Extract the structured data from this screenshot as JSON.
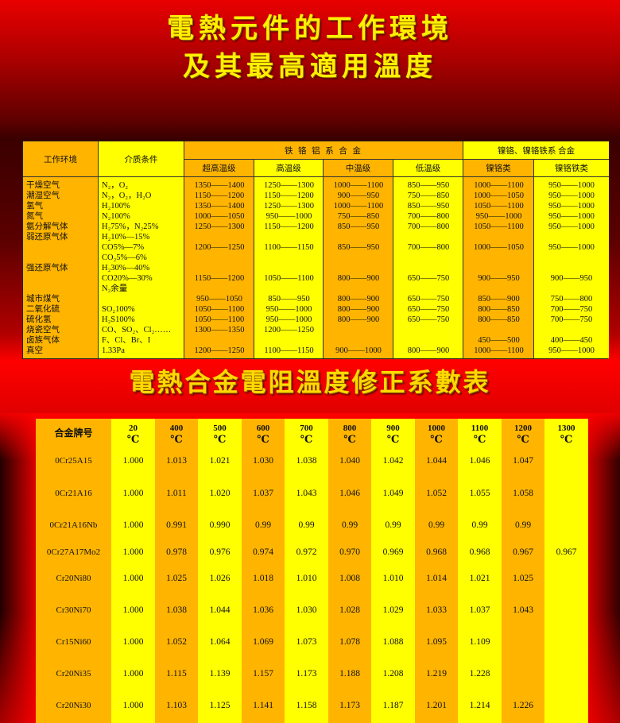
{
  "titles": {
    "line1": "電熱元件的工作環境",
    "line2": "及其最高適用溫度",
    "table2_title": "電熱合金電阻溫度修正系數表"
  },
  "colors": {
    "orange": "#ffb400",
    "yellow": "#ffff00",
    "title": "#fff000",
    "background": "#e00000"
  },
  "table1": {
    "headers": {
      "env": "工作环境",
      "medium": "介质条件",
      "group_fecral": "铁 铬 铝 系 合 金",
      "group_nicr": "镍铬、镍铬铁系 合金",
      "sub": [
        "超高温级",
        "高温级",
        "中温级",
        "低温级",
        "镍铬类",
        "镍铬铁类"
      ]
    },
    "lines": [
      [
        "干燥空气",
        "N₂，O₂",
        "1350——1400",
        "1250——1300",
        "1000——1100",
        "850——950",
        "1000——1100",
        "950——1000"
      ],
      [
        "潮湿空气",
        "N₂，O₂，H₂O",
        "1150——1200",
        "1150——1200",
        "900——950",
        "750——850",
        "1000——1050",
        "950——1000"
      ],
      [
        "氢气",
        "H₂100%",
        "1350——1400",
        "1250——1300",
        "1000——1100",
        "850——950",
        "1050——1100",
        "950——1000"
      ],
      [
        "氮气",
        "N₂100%",
        "1000——1050",
        "950——1000",
        "750——850",
        "700——800",
        "950——1000",
        "950——1000"
      ],
      [
        "氨分解气体",
        "H₂75%，N₂25%",
        "1250——1300",
        "1150——1200",
        "850——950",
        "700——800",
        "1050——1100",
        "950——1000"
      ],
      [
        "弱还原气体",
        "H₂10%—15%",
        "",
        "",
        "",
        "",
        "",
        ""
      ],
      [
        "",
        "CO5%—7%",
        "1200——1250",
        "1100——1150",
        "850——950",
        "700——800",
        "1000——1050",
        "950——1000"
      ],
      [
        "",
        "CO₂5%—6%",
        "",
        "",
        "",
        "",
        "",
        ""
      ],
      [
        "强还原气体",
        "H₂30%—40%",
        "",
        "",
        "",
        "",
        "",
        ""
      ],
      [
        "",
        "CO20%—30%",
        "1150——1200",
        "1050——1100",
        "800——900",
        "650——750",
        "900——950",
        "900——950"
      ],
      [
        "",
        "N₂余量",
        "",
        "",
        "",
        "",
        "",
        ""
      ],
      [
        "城市煤气",
        "",
        "950——1050",
        "850——950",
        "800——900",
        "650——750",
        "850——900",
        "750——800"
      ],
      [
        "二氧化硫",
        "SO₂100%",
        "1050——1100",
        "950——1000",
        "800——900",
        "650——750",
        "800——850",
        "700——750"
      ],
      [
        "硫化氢",
        "H₂S100%",
        "1050——1100",
        "950——1000",
        "800——900",
        "650——750",
        "800——850",
        "700——750"
      ],
      [
        "烧瓷空气",
        "CO、SO₂、Cl₂……",
        "1300——1350",
        "1200——1250",
        "",
        "",
        "",
        ""
      ],
      [
        "卤族气体",
        "F、Cl、Br、I",
        "",
        "",
        "",
        "",
        "450——500",
        "400——450"
      ],
      [
        "真空",
        "1.33Pa",
        "1200——1250",
        "1100——1150",
        "900——1000",
        "800——900",
        "1000——1100",
        "950——1000"
      ]
    ]
  },
  "table2": {
    "header_label": "合金牌号",
    "unit": "℃",
    "temperatures": [
      "20",
      "400",
      "500",
      "600",
      "700",
      "800",
      "900",
      "1000",
      "1100",
      "1200",
      "1300"
    ],
    "rows": [
      {
        "alloy": "0Cr25A15",
        "values": [
          "1.000",
          "1.013",
          "1.021",
          "1.030",
          "1.038",
          "1.040",
          "1.042",
          "1.044",
          "1.046",
          "1.047",
          ""
        ]
      },
      {
        "alloy": "0Cr21A16",
        "values": [
          "1.000",
          "1.011",
          "1.020",
          "1.037",
          "1.043",
          "1.046",
          "1.049",
          "1.052",
          "1.055",
          "1.058",
          ""
        ]
      },
      {
        "alloy": "0Cr21A16Nb",
        "values": [
          "1.000",
          "0.991",
          "0.990",
          "0.99",
          "0.99",
          "0.99",
          "0.99",
          "0.99",
          "0.99",
          "0.99",
          ""
        ]
      },
      {
        "alloy": "0Cr27A17Mo2",
        "values": [
          "1.000",
          "0.978",
          "0.976",
          "0.974",
          "0.972",
          "0.970",
          "0.969",
          "0.968",
          "0.968",
          "0.967",
          "0.967"
        ]
      },
      {
        "alloy": "Cr20Ni80",
        "values": [
          "1.000",
          "1.025",
          "1.026",
          "1.018",
          "1.010",
          "1.008",
          "1.010",
          "1.014",
          "1.021",
          "1.025",
          ""
        ]
      },
      {
        "alloy": "Cr30Ni70",
        "values": [
          "1.000",
          "1.038",
          "1.044",
          "1.036",
          "1.030",
          "1.028",
          "1.029",
          "1.033",
          "1.037",
          "1.043",
          ""
        ]
      },
      {
        "alloy": "Cr15Ni60",
        "values": [
          "1.000",
          "1.052",
          "1.064",
          "1.069",
          "1.073",
          "1.078",
          "1.088",
          "1.095",
          "1.109",
          "",
          ""
        ]
      },
      {
        "alloy": "Cr20Ni35",
        "values": [
          "1.000",
          "1.115",
          "1.139",
          "1.157",
          "1.173",
          "1.188",
          "1.208",
          "1.219",
          "1.228",
          "",
          ""
        ]
      },
      {
        "alloy": "Cr20Ni30",
        "values": [
          "1.000",
          "1.103",
          "1.125",
          "1.141",
          "1.158",
          "1.173",
          "1.187",
          "1.201",
          "1.214",
          "1.226",
          ""
        ]
      }
    ]
  }
}
